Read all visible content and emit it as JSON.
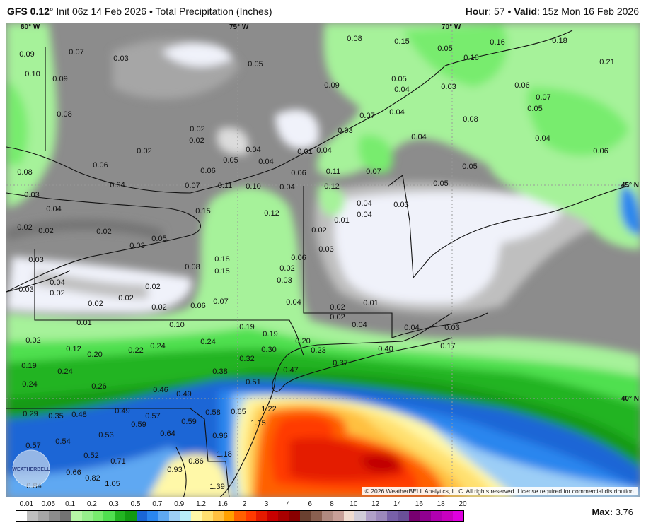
{
  "header": {
    "model": "GFS 0.12",
    "degree": "°",
    "init": "Init 06z 14 Feb 2026",
    "sep": "•",
    "product": "Total Precipitation (Inches)",
    "hour_label": "Hour",
    "hour": "57",
    "valid_label": "Valid",
    "valid": "15z Mon 16 Feb 2026"
  },
  "map": {
    "gridlabels": [
      "80° W",
      "75° W",
      "70° W",
      "45° N",
      "40° N"
    ],
    "contour_labels": [
      "0.09",
      "0.07",
      "0.03",
      "0.10",
      "0.09",
      "0.08",
      "0.05",
      "0.08",
      "0.15",
      "0.05",
      "0.16",
      "0.16",
      "0.18",
      "0.21",
      "0.05",
      "0.04",
      "0.09",
      "0.03",
      "0.06",
      "0.07",
      "0.05",
      "0.08",
      "0.07",
      "0.04",
      "0.02",
      "0.02",
      "0.02",
      "0.03",
      "0.04",
      "0.08",
      "0.06",
      "0.04",
      "0.05",
      "0.04",
      "0.01",
      "0.04",
      "0.06",
      "0.06",
      "0.11",
      "0.07",
      "0.05",
      "0.05",
      "0.04",
      "0.06",
      "0.04",
      "0.07",
      "0.11",
      "0.10",
      "0.04",
      "0.12",
      "0.04",
      "0.04",
      "0.03",
      "0.03",
      "0.04",
      "0.02",
      "0.02",
      "0.02",
      "0.15",
      "0.12",
      "0.01",
      "0.02",
      "0.05",
      "0.03",
      "0.03",
      "0.06",
      "0.03",
      "0.08",
      "0.18",
      "0.15",
      "0.02",
      "0.03",
      "0.04",
      "0.02",
      "0.03",
      "0.02",
      "0.02",
      "0.02",
      "0.02",
      "0.06",
      "0.07",
      "0.04",
      "0.02",
      "0.01",
      "0.02",
      "0.04",
      "0.04",
      "0.03",
      "0.01",
      "0.10",
      "0.19",
      "0.19",
      "0.02",
      "0.12",
      "0.20",
      "0.22",
      "0.24",
      "0.24",
      "0.20",
      "0.23",
      "0.30",
      "0.32",
      "0.37",
      "0.40",
      "0.17",
      "0.19",
      "0.24",
      "0.38",
      "0.47",
      "0.24",
      "0.26",
      "0.46",
      "0.49",
      "0.51",
      "0.29",
      "0.35",
      "0.48",
      "0.49",
      "0.57",
      "0.58",
      "0.65",
      "1.22",
      "1.15",
      "0.59",
      "0.59",
      "0.57",
      "0.54",
      "0.53",
      "0.64",
      "0.96",
      "0.52",
      "0.71",
      "1.18",
      "0.86",
      "0.66",
      "0.93",
      "0.82",
      "0.84",
      "1.05",
      "1.39"
    ],
    "copyright": "© 2026 WeatherBELL Analytics, LLC. All rights reserved. License required for commercial distribution.",
    "logo": "WEATHERBELL"
  },
  "legend": {
    "labels": [
      "0.01",
      "0.05",
      "0.1",
      "0.2",
      "0.3",
      "0.5",
      "0.7",
      "0.9",
      "1.2",
      "1.6",
      "2",
      "3",
      "4",
      "6",
      "8",
      "10",
      "12",
      "14",
      "16",
      "18",
      "20"
    ],
    "colors": [
      "#ffffff",
      "#bfbfbf",
      "#a6a6a6",
      "#8c8c8c",
      "#737373",
      "#b6f6a6",
      "#96f08c",
      "#78ec6e",
      "#50e050",
      "#22b422",
      "#129a12",
      "#1a66d6",
      "#2a86ee",
      "#5ea8f2",
      "#9ccef6",
      "#b8eef8",
      "#fff8a8",
      "#ffe070",
      "#ffc040",
      "#ffa000",
      "#ff6000",
      "#ff3a00",
      "#e41a00",
      "#c80000",
      "#a80000",
      "#880000",
      "#6a4030",
      "#8a6050",
      "#b08a80",
      "#c8a098",
      "#f0dcd0",
      "#d0ccd8",
      "#b0a0c8",
      "#9c88bc",
      "#7860a8",
      "#6a5098",
      "#780070",
      "#900090",
      "#b000b0",
      "#c800c0",
      "#e000e0"
    ],
    "max_label": "Max:",
    "max_value": "3.76"
  }
}
